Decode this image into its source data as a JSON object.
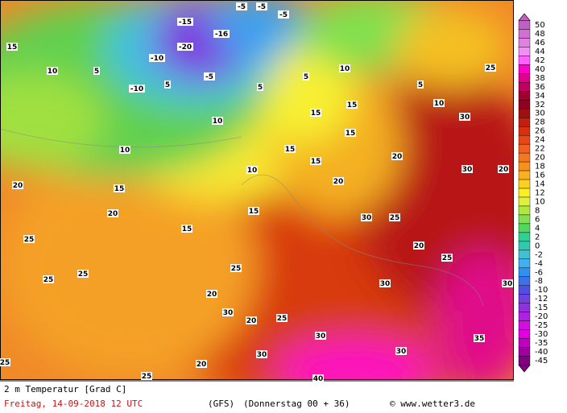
{
  "title": "2 m Temperatur [Grad C]",
  "date": "Freitag, 14-09-2018  12 UTC",
  "model": "(GFS)",
  "run": "(Donnerstag 00 + 36)",
  "credit": "© www.wetter3.de",
  "legend": {
    "levels": [
      50,
      48,
      46,
      44,
      42,
      40,
      38,
      36,
      34,
      32,
      30,
      28,
      26,
      24,
      22,
      20,
      18,
      16,
      14,
      12,
      10,
      8,
      6,
      4,
      2,
      0,
      -2,
      -4,
      -6,
      -8,
      -10,
      -12,
      -15,
      -20,
      -25,
      -30,
      -35,
      -40,
      -45
    ],
    "colors": [
      "#c060c0",
      "#d070d0",
      "#e080e0",
      "#f090f0",
      "#ff60ff",
      "#ff00cc",
      "#e00090",
      "#c00060",
      "#a00030",
      "#900020",
      "#a01010",
      "#c02010",
      "#d83010",
      "#e84818",
      "#f06020",
      "#f47820",
      "#f89020",
      "#fcb020",
      "#fcd020",
      "#f8f020",
      "#e0f040",
      "#b0e840",
      "#80e050",
      "#50d860",
      "#30d090",
      "#30c8b0",
      "#40c0d0",
      "#40b0f0",
      "#3090f0",
      "#4070e8",
      "#5050e0",
      "#7040e0",
      "#9030e0",
      "#b020e0",
      "#d010e0",
      "#e000e0",
      "#c000c0",
      "#a000a0",
      "#800080"
    ]
  },
  "map_labels": [
    15,
    10,
    5,
    -15,
    -20,
    -10,
    -16,
    -5,
    -5,
    -5,
    -10,
    -5,
    5,
    10,
    10,
    20,
    15,
    20,
    25,
    15,
    15,
    10,
    5,
    5,
    10,
    15,
    15,
    15,
    15,
    15,
    20,
    20,
    5,
    10,
    30,
    25,
    30,
    20,
    25,
    30,
    20,
    25,
    30,
    35,
    30,
    40,
    30,
    20,
    25,
    25,
    25,
    25,
    25,
    20,
    30,
    20,
    25,
    30,
    30
  ]
}
